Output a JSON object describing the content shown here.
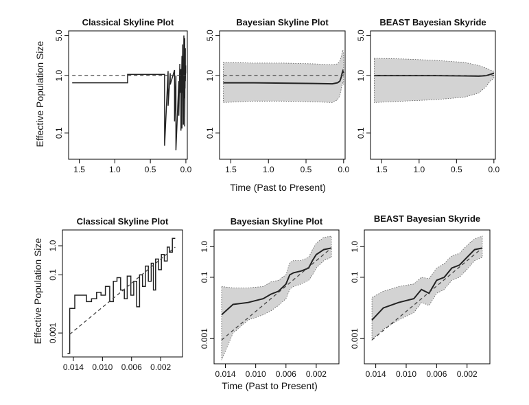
{
  "figure": {
    "shared_xlabel_top": "Time (Past to Present)",
    "shared_xlabel_bottom": "Time (Past to Present)",
    "shared_ylabel_top": "Effective Population Size",
    "shared_ylabel_bottom": "Effective Population Size"
  },
  "chart_data": [
    {
      "type": "line",
      "title": "Classical Skyline Plot",
      "xlabel": "",
      "ylabel": "Effective Population Size",
      "xlim": [
        1.65,
        -0.02
      ],
      "ylim": [
        0.035,
        6.0
      ],
      "yscale": "log",
      "xticks": [
        "1.5",
        "1.0",
        "0.5",
        "0.0"
      ],
      "xtick_values": [
        1.5,
        1.0,
        0.5,
        0.0
      ],
      "yticks": [
        "0.1",
        "1.0",
        "5.0"
      ],
      "ytick_values": [
        0.1,
        1.0,
        5.0
      ],
      "grid": false,
      "series": [
        {
          "style": "step",
          "x": [
            1.6,
            0.82,
            0.82,
            0.3,
            0.3,
            0.25,
            0.25,
            0.22,
            0.22,
            0.16,
            0.16,
            0.14,
            0.14,
            0.1,
            0.1,
            0.085,
            0.085,
            0.07,
            0.07,
            0.055,
            0.055,
            0.045,
            0.045,
            0.035,
            0.035,
            0.028,
            0.028,
            0.022,
            0.022,
            0.017,
            0.017,
            0.012,
            0.012,
            0.008,
            0.008,
            0.004,
            0.004,
            0.0
          ],
          "y": [
            0.75,
            0.75,
            1.05,
            1.05,
            0.06,
            1.2,
            0.3,
            1.1,
            0.7,
            1.25,
            0.16,
            1.0,
            0.05,
            0.8,
            0.2,
            1.6,
            0.5,
            1.3,
            0.11,
            2.2,
            0.12,
            3.5,
            0.5,
            1.8,
            0.14,
            5.0,
            0.4,
            2.5,
            0.9,
            4.5,
            0.13,
            2.0,
            0.6,
            3.0,
            0.8,
            1.5,
            1.1,
            1.1
          ]
        },
        {
          "style": "dashed",
          "x": [
            1.6,
            0.0
          ],
          "y": [
            1.0,
            1.0
          ]
        }
      ]
    },
    {
      "type": "area",
      "title": "Bayesian Skyline Plot",
      "xlabel": "",
      "ylabel": "",
      "xlim": [
        1.65,
        -0.02
      ],
      "ylim": [
        0.035,
        6.0
      ],
      "yscale": "log",
      "xticks": [
        "1.5",
        "1.0",
        "0.5",
        "0.0"
      ],
      "xtick_values": [
        1.5,
        1.0,
        0.5,
        0.0
      ],
      "yticks": [
        "0.1",
        "1.0",
        "5.0"
      ],
      "ytick_values": [
        0.1,
        1.0,
        5.0
      ],
      "grid": false,
      "series": [
        {
          "style": "median",
          "x": [
            1.6,
            1.2,
            0.8,
            0.4,
            0.15,
            0.08,
            0.05,
            0.03,
            0.02,
            0.01,
            0.0
          ],
          "y": [
            0.75,
            0.75,
            0.74,
            0.73,
            0.72,
            0.75,
            0.8,
            0.95,
            1.1,
            1.2,
            1.1
          ]
        },
        {
          "style": "band",
          "x": [
            1.6,
            1.2,
            0.8,
            0.4,
            0.15,
            0.08,
            0.05,
            0.03,
            0.02,
            0.01,
            0.0
          ],
          "lower": [
            0.34,
            0.36,
            0.36,
            0.35,
            0.34,
            0.38,
            0.45,
            0.6,
            0.7,
            0.75,
            0.7
          ],
          "upper": [
            1.7,
            1.65,
            1.65,
            1.6,
            1.55,
            1.6,
            1.8,
            2.2,
            2.5,
            2.8,
            2.3
          ]
        },
        {
          "style": "dashed",
          "x": [
            1.6,
            0.0
          ],
          "y": [
            1.0,
            1.0
          ]
        }
      ]
    },
    {
      "type": "area",
      "title": "BEAST Bayesian Skyride",
      "xlabel": "",
      "ylabel": "",
      "xlim": [
        1.65,
        -0.02
      ],
      "ylim": [
        0.035,
        6.0
      ],
      "yscale": "log",
      "xticks": [
        "1.5",
        "1.0",
        "0.5",
        "0.0"
      ],
      "xtick_values": [
        1.5,
        1.0,
        0.5,
        0.0
      ],
      "yticks": [
        "0.1",
        "1.0",
        "5.0"
      ],
      "ytick_values": [
        0.1,
        1.0,
        5.0
      ],
      "grid": false,
      "series": [
        {
          "style": "median",
          "x": [
            1.6,
            1.2,
            0.8,
            0.4,
            0.2,
            0.1,
            0.05,
            0.0
          ],
          "y": [
            1.0,
            1.0,
            1.0,
            0.99,
            0.98,
            1.0,
            1.05,
            1.1
          ]
        },
        {
          "style": "band",
          "x": [
            1.6,
            1.2,
            0.8,
            0.4,
            0.2,
            0.1,
            0.05,
            0.0
          ],
          "lower": [
            0.34,
            0.36,
            0.38,
            0.42,
            0.5,
            0.65,
            0.8,
            0.9
          ],
          "upper": [
            2.0,
            1.95,
            1.85,
            1.7,
            1.5,
            1.35,
            1.25,
            1.2
          ]
        },
        {
          "style": "dashed",
          "x": [
            1.6,
            0.0
          ],
          "y": [
            1.0,
            1.0
          ]
        }
      ]
    },
    {
      "type": "line",
      "title": "Classical Skyline Plot",
      "xlabel": "",
      "ylabel": "Effective Population Size",
      "xlim": [
        0.0155,
        -0.001
      ],
      "ylim": [
        0.00015,
        3.5
      ],
      "yscale": "log",
      "xticks": [
        "0.014",
        "0.010",
        "0.006",
        "0.002"
      ],
      "xtick_values": [
        0.014,
        0.01,
        0.006,
        0.002
      ],
      "yticks": [
        "0.001",
        "0.1",
        "1.0"
      ],
      "ytick_values": [
        0.001,
        0.1,
        1.0
      ],
      "grid": false,
      "series": [
        {
          "style": "step",
          "x": [
            0.0148,
            0.0145,
            0.0145,
            0.0138,
            0.0138,
            0.0132,
            0.0132,
            0.0122,
            0.0122,
            0.0115,
            0.0115,
            0.0108,
            0.0108,
            0.0102,
            0.0102,
            0.0096,
            0.0096,
            0.009,
            0.009,
            0.0085,
            0.0085,
            0.008,
            0.008,
            0.0075,
            0.0075,
            0.007,
            0.007,
            0.0066,
            0.0066,
            0.0061,
            0.0061,
            0.0057,
            0.0057,
            0.0053,
            0.0053,
            0.0049,
            0.0049,
            0.0045,
            0.0045,
            0.0041,
            0.0041,
            0.0037,
            0.0037,
            0.0033,
            0.0033,
            0.003,
            0.003,
            0.0027,
            0.0027,
            0.0023,
            0.0023,
            0.0019,
            0.0019,
            0.0015,
            0.0015,
            0.0011,
            0.0011,
            0.0008,
            0.0008,
            0.0004,
            0.0004,
            0.0
          ],
          "y": [
            0.0002,
            0.0002,
            0.007,
            0.007,
            0.02,
            0.02,
            0.02,
            0.02,
            0.012,
            0.012,
            0.015,
            0.015,
            0.025,
            0.025,
            0.02,
            0.02,
            0.04,
            0.04,
            0.012,
            0.012,
            0.06,
            0.06,
            0.08,
            0.08,
            0.03,
            0.03,
            0.015,
            0.015,
            0.09,
            0.09,
            0.02,
            0.02,
            0.06,
            0.06,
            0.008,
            0.008,
            0.1,
            0.1,
            0.04,
            0.04,
            0.2,
            0.2,
            0.06,
            0.06,
            0.25,
            0.25,
            0.03,
            0.03,
            0.35,
            0.35,
            0.15,
            0.15,
            0.5,
            0.5,
            0.3,
            0.3,
            0.9,
            0.9,
            0.6,
            0.6,
            1.8,
            1.8
          ]
        },
        {
          "style": "dashed",
          "x": [
            0.0145,
            0.0
          ],
          "y": [
            0.0009,
            0.9
          ]
        }
      ]
    },
    {
      "type": "area",
      "title": "Bayesian Skyline Plot",
      "xlabel": "",
      "ylabel": "",
      "xlim": [
        0.0155,
        -0.001
      ],
      "ylim": [
        0.00015,
        3.5
      ],
      "yscale": "log",
      "xticks": [
        "0.014",
        "0.010",
        "0.006",
        "0.002"
      ],
      "xtick_values": [
        0.014,
        0.01,
        0.006,
        0.002
      ],
      "yticks": [
        "0.001",
        "0.1",
        "1.0"
      ],
      "ytick_values": [
        0.001,
        0.1,
        1.0
      ],
      "grid": false,
      "series": [
        {
          "style": "median",
          "x": [
            0.0145,
            0.013,
            0.011,
            0.009,
            0.008,
            0.007,
            0.006,
            0.0055,
            0.005,
            0.004,
            0.003,
            0.0025,
            0.002,
            0.001,
            0.0
          ],
          "y": [
            0.006,
            0.013,
            0.015,
            0.02,
            0.028,
            0.035,
            0.06,
            0.12,
            0.14,
            0.16,
            0.2,
            0.35,
            0.55,
            0.8,
            0.9
          ]
        },
        {
          "style": "band",
          "x": [
            0.0145,
            0.013,
            0.011,
            0.009,
            0.008,
            0.007,
            0.006,
            0.0055,
            0.005,
            0.004,
            0.003,
            0.0025,
            0.002,
            0.001,
            0.0
          ],
          "lower": [
            0.0002,
            0.0015,
            0.004,
            0.006,
            0.008,
            0.012,
            0.02,
            0.04,
            0.05,
            0.06,
            0.08,
            0.12,
            0.2,
            0.35,
            0.45
          ],
          "upper": [
            0.05,
            0.045,
            0.045,
            0.05,
            0.07,
            0.08,
            0.12,
            0.3,
            0.35,
            0.35,
            0.45,
            0.8,
            1.3,
            2.0,
            2.2
          ]
        },
        {
          "style": "dashed",
          "x": [
            0.0145,
            0.0
          ],
          "y": [
            0.0009,
            0.9
          ]
        }
      ]
    },
    {
      "type": "area",
      "title": "BEAST Bayesian Skyride",
      "xlabel": "",
      "ylabel": "",
      "xlim": [
        0.0155,
        -0.001
      ],
      "ylim": [
        0.00015,
        3.5
      ],
      "yscale": "log",
      "xticks": [
        "0.014",
        "0.010",
        "0.006",
        "0.002"
      ],
      "xtick_values": [
        0.014,
        0.01,
        0.006,
        0.002
      ],
      "yticks": [
        "0.001",
        "0.1",
        "1.0"
      ],
      "ytick_values": [
        0.001,
        0.1,
        1.0
      ],
      "grid": false,
      "series": [
        {
          "style": "median",
          "x": [
            0.0145,
            0.013,
            0.011,
            0.009,
            0.008,
            0.007,
            0.006,
            0.005,
            0.004,
            0.003,
            0.002,
            0.001,
            0.0
          ],
          "y": [
            0.004,
            0.01,
            0.015,
            0.02,
            0.04,
            0.03,
            0.08,
            0.1,
            0.2,
            0.25,
            0.45,
            0.8,
            0.9
          ]
        },
        {
          "style": "band",
          "x": [
            0.0145,
            0.013,
            0.011,
            0.009,
            0.008,
            0.007,
            0.006,
            0.005,
            0.004,
            0.003,
            0.002,
            0.001,
            0.0
          ],
          "lower": [
            0.0009,
            0.002,
            0.004,
            0.007,
            0.015,
            0.012,
            0.03,
            0.04,
            0.08,
            0.1,
            0.18,
            0.35,
            0.45
          ],
          "upper": [
            0.022,
            0.035,
            0.05,
            0.06,
            0.1,
            0.09,
            0.2,
            0.28,
            0.5,
            0.6,
            1.1,
            1.8,
            2.2
          ]
        },
        {
          "style": "dashed",
          "x": [
            0.0145,
            0.0
          ],
          "y": [
            0.0009,
            0.9
          ]
        }
      ]
    }
  ]
}
